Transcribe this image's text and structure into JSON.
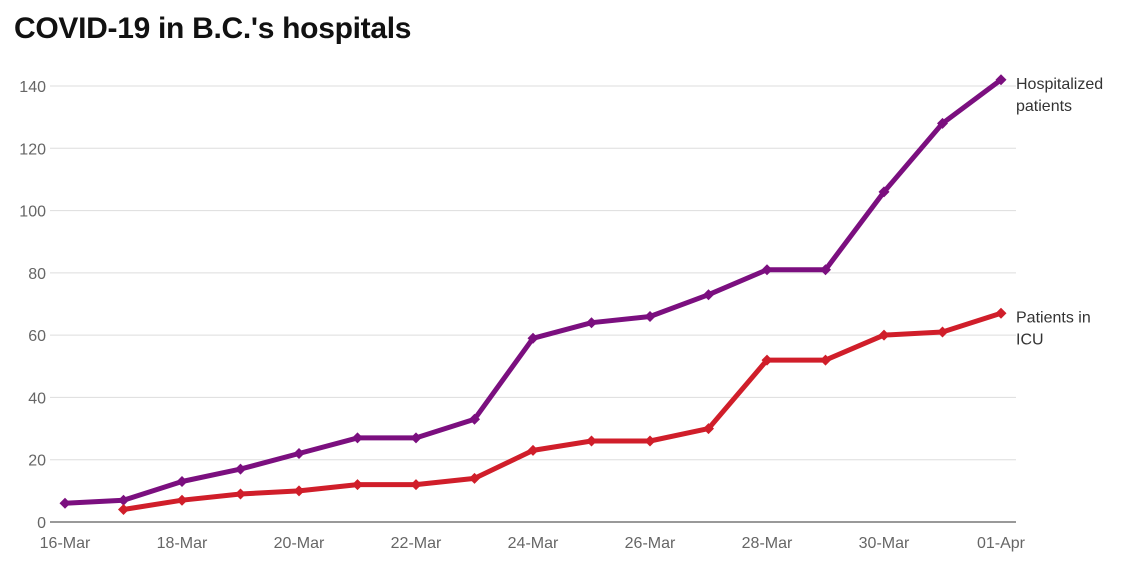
{
  "chart_data": {
    "type": "line",
    "title": "COVID-19 in B.C.'s hospitals",
    "xlabel": "",
    "ylabel": "",
    "x": [
      "16-Mar",
      "17-Mar",
      "18-Mar",
      "19-Mar",
      "20-Mar",
      "21-Mar",
      "22-Mar",
      "23-Mar",
      "24-Mar",
      "25-Mar",
      "26-Mar",
      "27-Mar",
      "28-Mar",
      "29-Mar",
      "30-Mar",
      "31-Mar",
      "01-Apr"
    ],
    "x_tick_labels": [
      "16-Mar",
      "18-Mar",
      "20-Mar",
      "22-Mar",
      "24-Mar",
      "26-Mar",
      "28-Mar",
      "30-Mar",
      "01-Apr"
    ],
    "ylim": [
      0,
      140
    ],
    "y_ticks": [
      0,
      20,
      40,
      60,
      80,
      100,
      120,
      140
    ],
    "grid": true,
    "legend": "inline labels at right end of lines",
    "series": [
      {
        "name": "Hospitalized patients",
        "label_lines": [
          "Hospitalized",
          "patients"
        ],
        "color": "#7b0f7f",
        "marker": "diamond",
        "values": [
          6,
          7,
          13,
          17,
          22,
          27,
          27,
          33,
          59,
          64,
          66,
          73,
          81,
          81,
          106,
          128,
          142
        ]
      },
      {
        "name": "Patients in ICU",
        "label_lines": [
          "Patients in",
          "ICU"
        ],
        "color": "#d01e2a",
        "marker": "diamond",
        "values": [
          null,
          4,
          7,
          9,
          10,
          12,
          12,
          14,
          23,
          26,
          26,
          30,
          52,
          52,
          60,
          61,
          67
        ]
      }
    ]
  }
}
